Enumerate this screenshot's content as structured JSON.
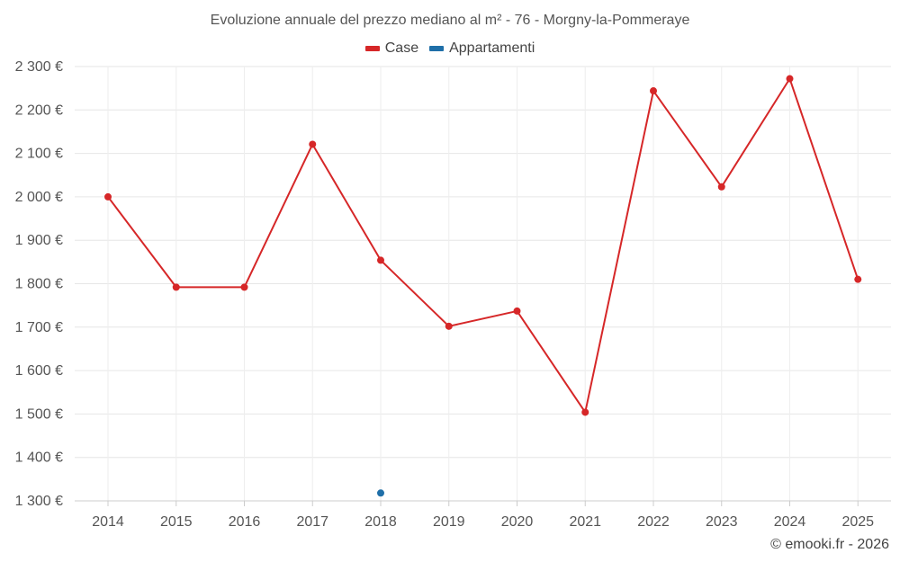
{
  "chart_data": {
    "type": "line",
    "title": "Evoluzione annuale del prezzo mediano al m² - 76 - Morgny-la-Pommeraye",
    "categories": [
      "2014",
      "2015",
      "2016",
      "2017",
      "2018",
      "2019",
      "2020",
      "2021",
      "2022",
      "2023",
      "2024",
      "2025"
    ],
    "y_tick_labels": [
      "1 300 €",
      "1 400 €",
      "1 500 €",
      "1 600 €",
      "1 700 €",
      "1 800 €",
      "1 900 €",
      "2 000 €",
      "2 100 €",
      "2 200 €",
      "2 300 €"
    ],
    "y_ticks": [
      1300,
      1400,
      1500,
      1600,
      1700,
      1800,
      1900,
      2000,
      2100,
      2200,
      2300
    ],
    "ylim": [
      1300,
      2300
    ],
    "grid": true,
    "legend_position": "top-center",
    "series": [
      {
        "name": "Case",
        "color": "#d62728",
        "values": [
          2000,
          1792,
          1792,
          2121,
          1854,
          1702,
          1737,
          1504,
          2244,
          2023,
          2272,
          1810
        ]
      },
      {
        "name": "Appartamenti",
        "color": "#1f6fa8",
        "values": [
          null,
          null,
          null,
          null,
          1318,
          null,
          null,
          null,
          null,
          null,
          null,
          null
        ]
      }
    ]
  },
  "footer": {
    "copyright": "© emooki.fr - 2026"
  }
}
